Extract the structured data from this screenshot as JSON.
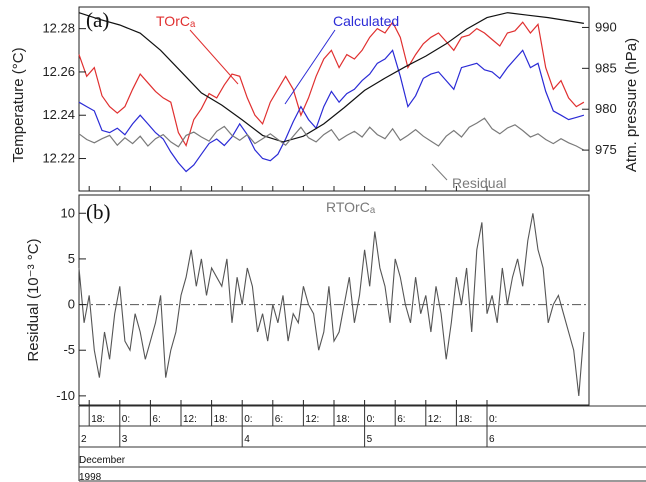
{
  "colors": {
    "torc": "#e03030",
    "calculated": "#2b2bd6",
    "pressure": "#111111",
    "residual": "#7a7a7a",
    "frame": "#222222"
  },
  "chart_data": [
    {
      "panel": "(a)",
      "type": "line",
      "ylabel": "Temperature (°C)",
      "y2label": "Atm. pressure (hPa)",
      "ylim": [
        12.205,
        12.29
      ],
      "y2lim": [
        970,
        992.5
      ],
      "yticks": [
        "12.22",
        "12.24",
        "12.26",
        "12.28"
      ],
      "y2ticks": [
        "975",
        "980",
        "985",
        "990"
      ],
      "xlim": [
        -8,
        92
      ],
      "x_unit": "hours since 1998-12-03 00:00",
      "annotations": {
        "torc": "TOrCₐ",
        "calculated": "Calculated",
        "residual": "Residual"
      },
      "series": [
        {
          "name": "TOrCₐ",
          "axis": "left",
          "x": [
            -8,
            -6.5,
            -5,
            -3.5,
            -2,
            -0.5,
            1,
            2.5,
            4,
            5.5,
            7,
            8.5,
            10,
            11.5,
            13,
            14.5,
            16,
            17.5,
            19,
            20.5,
            22,
            23.5,
            25,
            26.5,
            28,
            29.5,
            31,
            32.5,
            34,
            35.5,
            37,
            38.5,
            40,
            41.5,
            43,
            44.5,
            46,
            47.5,
            49,
            50.5,
            52,
            53.5,
            55,
            56.5,
            58,
            59.5,
            61,
            62.5,
            64,
            65.5,
            67,
            68.5,
            70,
            71.5,
            73,
            74.5,
            76,
            77.5,
            79,
            80.5,
            82,
            83.5,
            85,
            86.5,
            88,
            89.5,
            91
          ],
          "y": [
            12.268,
            12.258,
            12.262,
            12.249,
            12.244,
            12.241,
            12.244,
            12.252,
            12.259,
            12.255,
            12.251,
            12.248,
            12.246,
            12.232,
            12.226,
            12.238,
            12.243,
            12.25,
            12.248,
            12.254,
            12.259,
            12.258,
            12.248,
            12.24,
            12.236,
            12.246,
            12.252,
            12.258,
            12.252,
            12.24,
            12.248,
            12.258,
            12.266,
            12.27,
            12.262,
            12.268,
            12.266,
            12.27,
            12.276,
            12.28,
            12.278,
            12.283,
            12.276,
            12.262,
            12.268,
            12.273,
            12.276,
            12.278,
            12.274,
            12.27,
            12.276,
            12.277,
            12.28,
            12.278,
            12.275,
            12.272,
            12.278,
            12.279,
            12.283,
            12.278,
            12.282,
            12.262,
            12.252,
            12.256,
            12.248,
            12.244,
            12.246
          ]
        },
        {
          "name": "Calculated",
          "axis": "left",
          "x": [
            -8,
            -6.5,
            -5,
            -3.5,
            -2,
            -0.5,
            1,
            2.5,
            4,
            5.5,
            7,
            8.5,
            10,
            11.5,
            13,
            14.5,
            16,
            17.5,
            19,
            20.5,
            22,
            23.5,
            25,
            26.5,
            28,
            29.5,
            31,
            32.5,
            34,
            35.5,
            37,
            38.5,
            40,
            41.5,
            43,
            44.5,
            46,
            47.5,
            49,
            50.5,
            52,
            53.5,
            55,
            56.5,
            58,
            59.5,
            61,
            62.5,
            64,
            65.5,
            67,
            68.5,
            70,
            71.5,
            73,
            74.5,
            76,
            77.5,
            79,
            80.5,
            82,
            83.5,
            85,
            86.5,
            88,
            89.5,
            91
          ],
          "y": [
            12.246,
            12.244,
            12.242,
            12.233,
            12.232,
            12.234,
            12.231,
            12.236,
            12.24,
            12.236,
            12.232,
            12.229,
            12.223,
            12.218,
            12.214,
            12.217,
            12.222,
            12.227,
            12.229,
            12.226,
            12.23,
            12.236,
            12.231,
            12.224,
            12.22,
            12.219,
            12.222,
            12.229,
            12.237,
            12.244,
            12.238,
            12.234,
            12.244,
            12.251,
            12.246,
            12.25,
            12.252,
            12.256,
            12.259,
            12.264,
            12.266,
            12.27,
            12.258,
            12.244,
            12.249,
            12.257,
            12.259,
            12.26,
            12.256,
            12.252,
            12.262,
            12.263,
            12.264,
            12.261,
            12.26,
            12.257,
            12.262,
            12.266,
            12.27,
            12.262,
            12.264,
            12.251,
            12.242,
            12.24,
            12.238,
            12.239,
            12.24
          ]
        },
        {
          "name": "Atm. pressure",
          "axis": "right",
          "x": [
            -8,
            -4,
            0,
            4,
            8,
            12,
            16,
            20,
            24,
            28,
            32,
            36,
            40,
            44,
            48,
            52,
            56,
            60,
            64,
            68,
            72,
            76,
            80,
            84,
            88,
            91
          ],
          "y": [
            991.8,
            991,
            990.3,
            989.3,
            987.2,
            984.6,
            982,
            980.5,
            978.7,
            976.8,
            976,
            976.7,
            978.2,
            980.2,
            982.3,
            983.8,
            985.2,
            986.5,
            988,
            989.8,
            991.2,
            991.8,
            991.5,
            991.2,
            990.8,
            990.5
          ]
        },
        {
          "name": "Residual",
          "axis": "right",
          "x": [
            -8,
            -6.5,
            -5,
            -3.5,
            -2,
            -0.5,
            1,
            2.5,
            4,
            5.5,
            7,
            8.5,
            10,
            11.5,
            13,
            14.5,
            16,
            17.5,
            19,
            20.5,
            22,
            23.5,
            25,
            26.5,
            28,
            29.5,
            31,
            32.5,
            34,
            35.5,
            37,
            38.5,
            40,
            41.5,
            43,
            44.5,
            46,
            47.5,
            49,
            50.5,
            52,
            53.5,
            55,
            56.5,
            58,
            59.5,
            61,
            62.5,
            64,
            65.5,
            67,
            68.5,
            70,
            71.5,
            73,
            74.5,
            76,
            77.5,
            79,
            80.5,
            82,
            83.5,
            85,
            86.5,
            88,
            89.5,
            91
          ],
          "y": [
            977,
            976.3,
            975.9,
            976.4,
            976.8,
            975.6,
            976.5,
            975.8,
            976.7,
            975.5,
            976.4,
            976.9,
            976,
            975.4,
            976.8,
            977.2,
            976.6,
            976.1,
            977.3,
            977.9,
            976.8,
            976.2,
            976.9,
            975.8,
            976.4,
            977,
            976.3,
            975.6,
            976.7,
            977.8,
            976.5,
            976,
            976.9,
            977.5,
            976.2,
            976.8,
            977.3,
            976.6,
            977.8,
            976.9,
            976.4,
            977.6,
            976.2,
            976.8,
            977.5,
            976.7,
            976.1,
            975.5,
            976.7,
            977.4,
            976.6,
            977.8,
            978.3,
            978.9,
            977.6,
            977,
            977.7,
            978.1,
            977.4,
            976.6,
            977,
            976.3,
            975.8,
            976.4,
            975.9,
            975.5,
            975
          ]
        }
      ]
    },
    {
      "panel": "(b)",
      "type": "line",
      "title": "RTOrCₐ",
      "ylabel": "Residual (10⁻³ °C)",
      "ylim": [
        -11,
        12
      ],
      "yticks": [
        "-10",
        "-5",
        "0",
        "5",
        "10"
      ],
      "xlim": [
        -8,
        92
      ],
      "series": [
        {
          "name": "RTOrCₐ",
          "x": [
            -8,
            -7,
            -6,
            -5,
            -4,
            -3,
            -2,
            -1,
            0,
            1,
            2,
            3,
            4,
            5,
            6,
            7,
            8,
            9,
            10,
            11,
            12,
            13,
            14,
            15,
            16,
            17,
            18,
            19,
            20,
            21,
            22,
            23,
            24,
            25,
            26,
            27,
            28,
            29,
            30,
            31,
            32,
            33,
            34,
            35,
            36,
            37,
            38,
            39,
            40,
            41,
            42,
            43,
            44,
            45,
            46,
            47,
            48,
            49,
            50,
            51,
            52,
            53,
            54,
            55,
            56,
            57,
            58,
            59,
            60,
            61,
            62,
            63,
            64,
            65,
            66,
            67,
            68,
            69,
            70,
            71,
            72,
            73,
            74,
            75,
            76,
            77,
            78,
            79,
            80,
            81,
            82,
            83,
            84,
            85,
            86,
            87,
            88,
            89,
            90,
            91
          ],
          "y": [
            4,
            -2,
            1,
            -5,
            -8,
            -3,
            -6,
            -1,
            2,
            -4,
            -5,
            -1,
            -3,
            -6,
            -4,
            -2,
            1,
            -8,
            -5,
            -3,
            1,
            3,
            6,
            2,
            5,
            1,
            4,
            3,
            2,
            5,
            -2,
            3,
            0,
            4,
            2,
            -3,
            -1,
            -4,
            0,
            -2,
            1,
            -4,
            -1,
            -2,
            2,
            0,
            -1,
            -5,
            -3,
            2,
            -4,
            -3,
            0,
            3,
            -2,
            1,
            6,
            2,
            8,
            4,
            2,
            -2,
            5,
            3,
            0,
            -2,
            3,
            -1,
            1,
            -3,
            2,
            -1,
            -6,
            -2,
            3,
            0,
            4,
            -3,
            6,
            9,
            -1,
            1,
            -2,
            4,
            0,
            3,
            5,
            2,
            7,
            10,
            6,
            4,
            -2,
            0,
            1,
            -1,
            -3,
            -5,
            -10,
            -3
          ]
        }
      ]
    }
  ],
  "time_axis": {
    "hour_ticks": [
      {
        "t": -6,
        "label": "18:"
      },
      {
        "t": 0,
        "label": "0:"
      },
      {
        "t": 6,
        "label": "6:"
      },
      {
        "t": 12,
        "label": "12:"
      },
      {
        "t": 18,
        "label": "18:"
      },
      {
        "t": 24,
        "label": "0:"
      },
      {
        "t": 30,
        "label": "6:"
      },
      {
        "t": 36,
        "label": "12:"
      },
      {
        "t": 42,
        "label": "18:"
      },
      {
        "t": 48,
        "label": "0:"
      },
      {
        "t": 54,
        "label": "6:"
      },
      {
        "t": 60,
        "label": "12:"
      },
      {
        "t": 66,
        "label": "18:"
      },
      {
        "t": 72,
        "label": "0:"
      }
    ],
    "days": [
      {
        "t": -8,
        "label": "2"
      },
      {
        "t": 0,
        "label": "3"
      },
      {
        "t": 24,
        "label": "4"
      },
      {
        "t": 48,
        "label": "5"
      },
      {
        "t": 72,
        "label": "6"
      }
    ],
    "month": "December",
    "year": "1998"
  }
}
